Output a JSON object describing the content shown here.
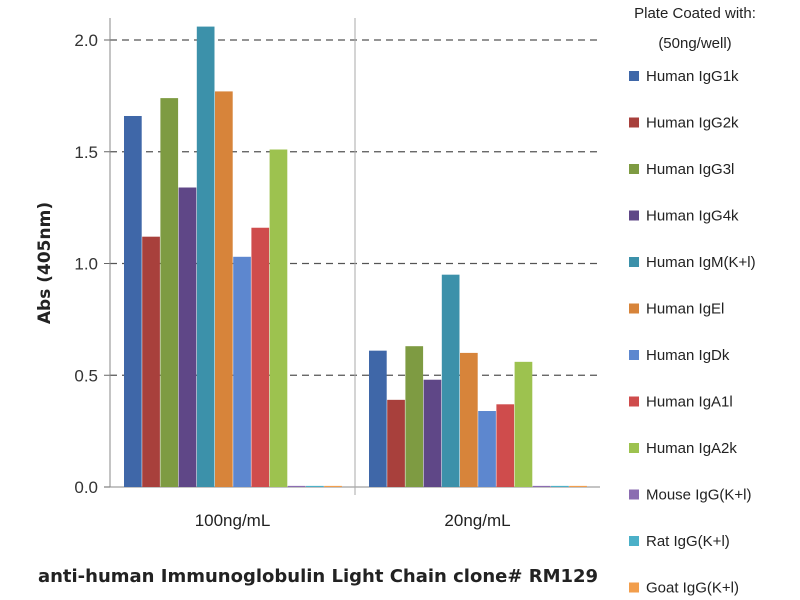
{
  "chart_data": {
    "type": "bar",
    "title": "",
    "xlabel": "anti-human Immunoglobulin Light Chain clone# RM129",
    "ylabel": "Abs (405nm)",
    "ylim": [
      0,
      2.0
    ],
    "yticks": [
      "0.0",
      "0.5",
      "1.0",
      "1.5",
      "2.0"
    ],
    "grid": "horizontal dashed",
    "categories": [
      "100ng/mL",
      "20ng/mL"
    ],
    "legend": {
      "title_line1": "Plate Coated with:",
      "title_line2": "(50ng/well)",
      "placement": "right"
    },
    "series": [
      {
        "name": "Human IgG1k",
        "color": "#3f67a8",
        "values": [
          1.66,
          0.61
        ]
      },
      {
        "name": "Human IgG2k",
        "color": "#a8403c",
        "values": [
          1.12,
          0.39
        ]
      },
      {
        "name": "Human IgG3l",
        "color": "#7e9b42",
        "values": [
          1.74,
          0.63
        ]
      },
      {
        "name": "Human IgG4k",
        "color": "#5f4787",
        "values": [
          1.34,
          0.48
        ]
      },
      {
        "name": "Human IgM(K+l)",
        "color": "#3c91aa",
        "values": [
          2.06,
          0.95
        ]
      },
      {
        "name": "Human IgEl",
        "color": "#d7843a",
        "values": [
          1.77,
          0.6
        ]
      },
      {
        "name": "Human IgDk",
        "color": "#5d87cf",
        "values": [
          1.03,
          0.34
        ]
      },
      {
        "name": "Human IgA1l",
        "color": "#cf4c4c",
        "values": [
          1.16,
          0.37
        ]
      },
      {
        "name": "Human IgA2k",
        "color": "#9dc24f",
        "values": [
          1.51,
          0.56
        ]
      },
      {
        "name": "Mouse IgG(K+l)",
        "color": "#8b6cb1",
        "values": [
          0.005,
          0.005
        ]
      },
      {
        "name": "Rat IgG(K+l)",
        "color": "#4bb0c8",
        "values": [
          0.005,
          0.005
        ]
      },
      {
        "name": "Goat IgG(K+l)",
        "color": "#f29e4c",
        "values": [
          0.005,
          0.005
        ]
      }
    ]
  }
}
